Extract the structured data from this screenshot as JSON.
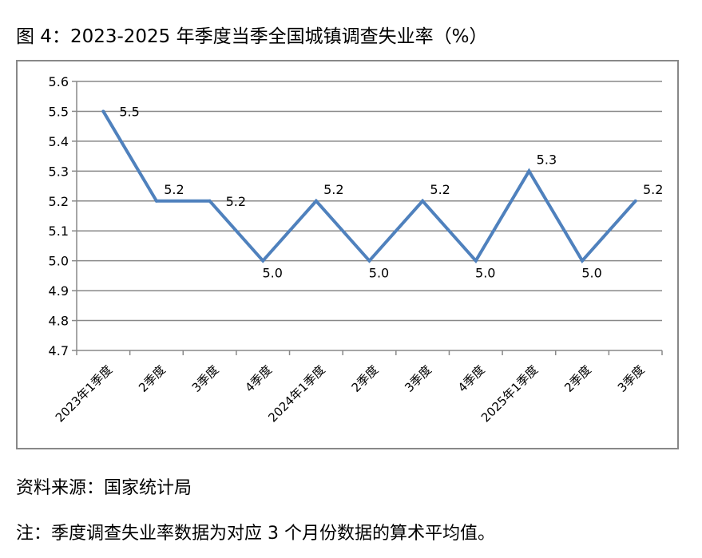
{
  "title": "图 4：2023-2025 年季度当季全国城镇调查失业率（%）",
  "source": "资料来源：国家统计局",
  "note": "注：季度调查失业率数据为对应 3 个月份数据的算术平均值。",
  "chart_data": {
    "type": "line",
    "title": "图 4：2023-2025 年季度当季全国城镇调查失业率（%）",
    "categories": [
      "2023年1季度",
      "2季度",
      "3季度",
      "4季度",
      "2024年1季度",
      "2季度",
      "3季度",
      "4季度",
      "2025年1季度",
      "2季度",
      "3季度"
    ],
    "values": [
      5.5,
      5.2,
      5.2,
      5.0,
      5.2,
      5.0,
      5.2,
      5.0,
      5.3,
      5.0,
      5.2
    ],
    "data_labels": [
      "5.5",
      "5.2",
      "5.2",
      "5.0",
      "5.2",
      "5.0",
      "5.2",
      "5.0",
      "5.3",
      "5.0",
      "5.2"
    ],
    "ylim": [
      4.7,
      5.6
    ],
    "yticks": [
      "4.7",
      "4.8",
      "4.9",
      "5.0",
      "5.1",
      "5.2",
      "5.3",
      "5.4",
      "5.5",
      "5.6"
    ],
    "grid": true,
    "legend": "none",
    "line_color": "#4f81bd",
    "xlabel": "",
    "ylabel": ""
  }
}
